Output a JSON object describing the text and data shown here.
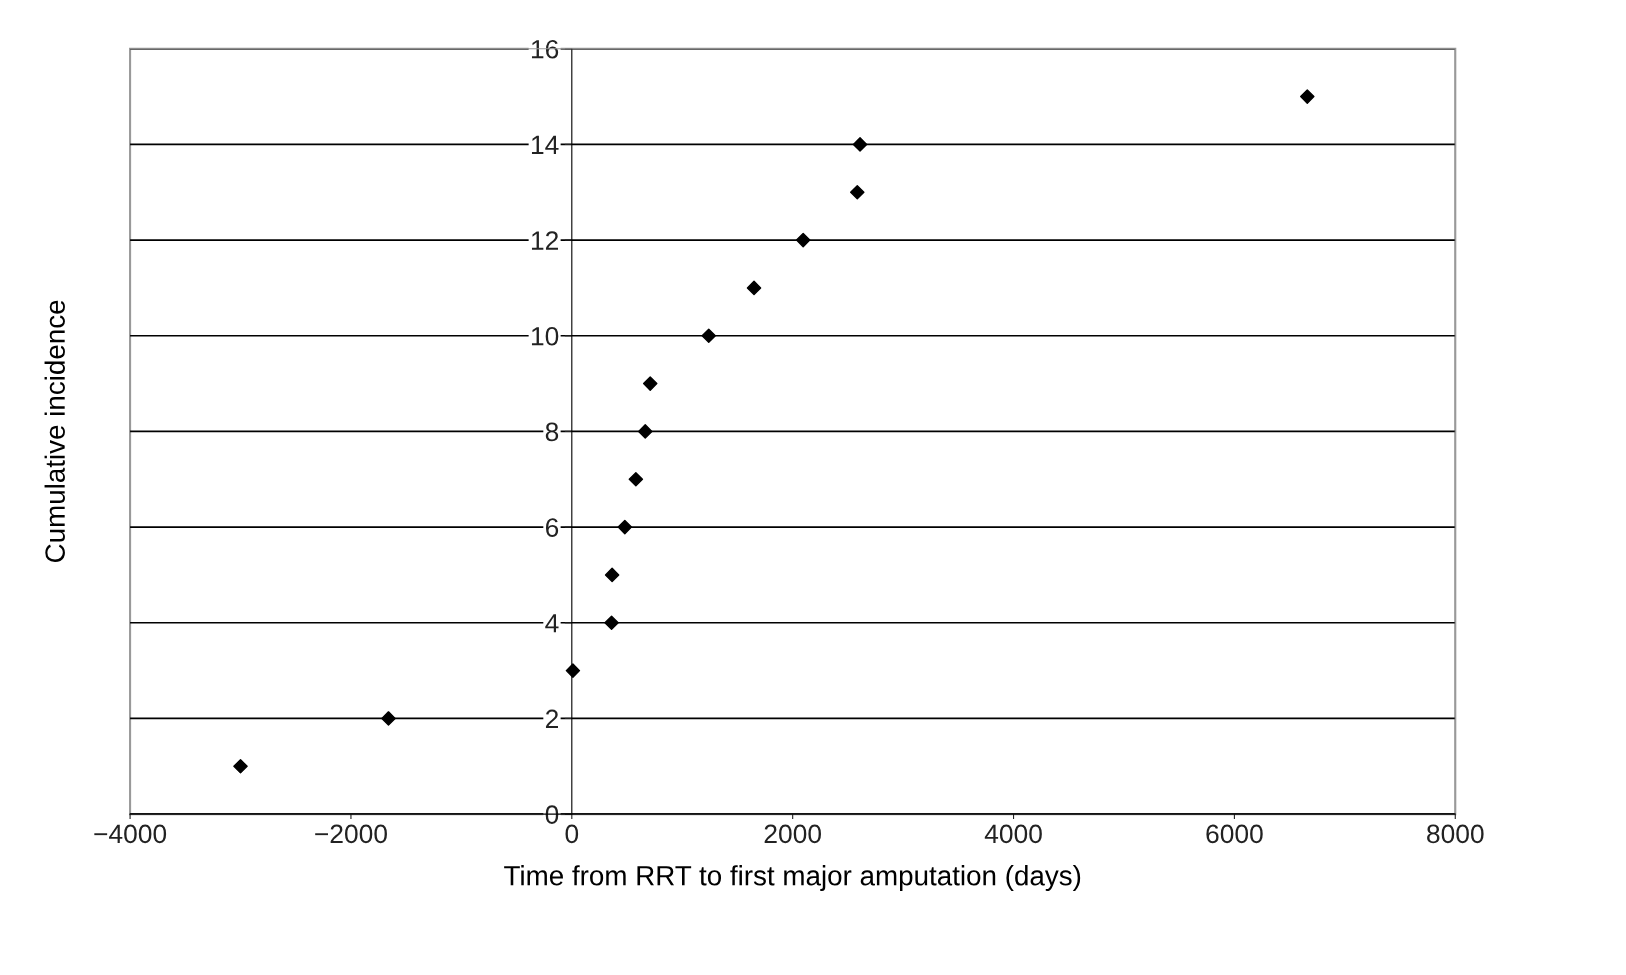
{
  "chart_data": {
    "type": "scatter",
    "xlabel": "Time from RRT to first major amputation (days)",
    "ylabel": "Cumulative incidence",
    "x": [
      -3000,
      -1660,
      10,
      360,
      365,
      480,
      580,
      665,
      710,
      1240,
      1650,
      2095,
      2585,
      2610,
      6660
    ],
    "values": [
      1,
      2,
      3,
      4,
      5,
      6,
      7,
      8,
      9,
      10,
      11,
      12,
      13,
      14,
      15
    ],
    "color": "#000000",
    "marker": "diamond",
    "xlim": [
      -4000,
      8000
    ],
    "xticks": [
      {
        "value": -4000,
        "label": "−4000"
      },
      {
        "value": -2000,
        "label": "−2000"
      },
      0,
      2000,
      4000,
      6000,
      8000
    ],
    "ylim": [
      0,
      16
    ],
    "yticks": [
      0,
      2,
      4,
      6,
      8,
      10,
      12,
      14,
      16
    ],
    "grid": "y"
  }
}
